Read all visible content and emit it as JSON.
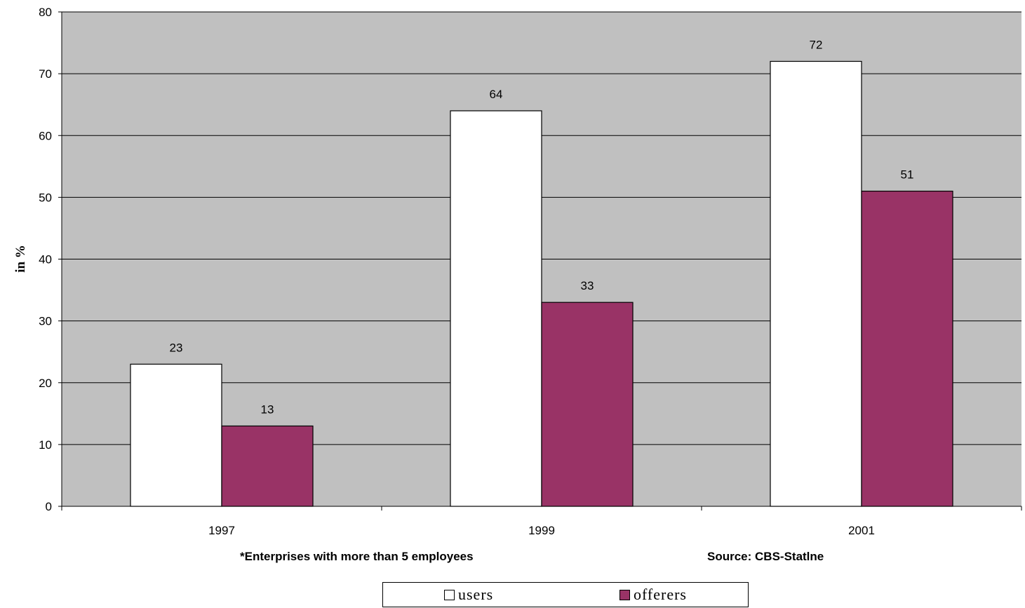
{
  "chart_data": {
    "type": "bar",
    "categories": [
      "1997",
      "1999",
      "2001"
    ],
    "series": [
      {
        "name": "users",
        "values": [
          23,
          64,
          72
        ],
        "color": "#ffffff"
      },
      {
        "name": "offerers",
        "values": [
          13,
          33,
          51
        ],
        "color": "#993366"
      }
    ],
    "data_labels": [
      [
        "23",
        "64",
        "72"
      ],
      [
        "13",
        "33",
        "51"
      ]
    ],
    "ylabel": "in %",
    "ylim": [
      0,
      80
    ],
    "yticks": [
      0,
      10,
      20,
      30,
      40,
      50,
      60,
      70,
      80
    ],
    "grid": true,
    "plot_background": "#c0c0c0",
    "legend_position": "bottom",
    "notes": {
      "left": "*Enterprises with more than 5 employees",
      "right": "Source: CBS-Statlne"
    }
  }
}
